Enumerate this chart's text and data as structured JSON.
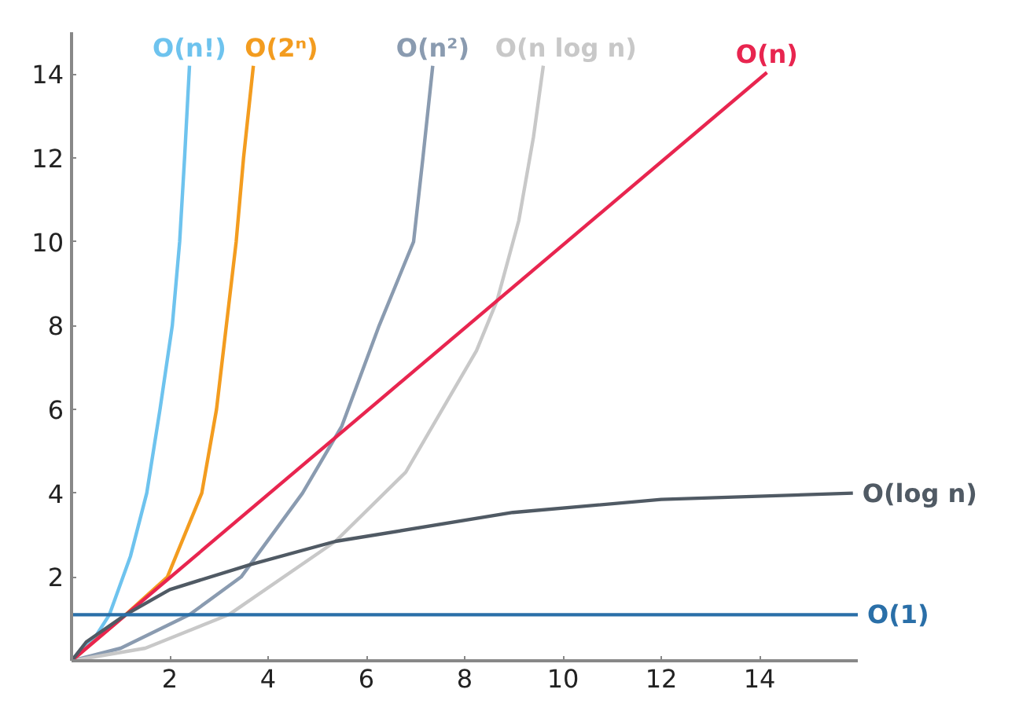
{
  "chart_data": {
    "type": "line",
    "xlim": [
      0,
      16
    ],
    "ylim": [
      0,
      15
    ],
    "xticks": [
      2,
      4,
      6,
      8,
      10,
      12,
      14
    ],
    "yticks": [
      2,
      4,
      6,
      8,
      10,
      12,
      14
    ],
    "grid": false,
    "legend": false,
    "marker": "none",
    "line_style": "solid",
    "series": [
      {
        "name": "O(n!)",
        "color": "#6ec3ee",
        "x": [
          0,
          0.5,
          0.77,
          1.2,
          1.53,
          1.8,
          2.05,
          2.2,
          2.3,
          2.4
        ],
        "values": [
          0,
          0.6,
          1.1,
          2.5,
          4,
          6,
          8,
          10,
          12,
          14.2
        ]
      },
      {
        "name": "O(2ⁿ)",
        "color": "#f39c1f",
        "x": [
          0,
          0.5,
          1.1,
          1.95,
          2.65,
          2.95,
          3.15,
          3.35,
          3.5,
          3.7
        ],
        "values": [
          0,
          0.5,
          1.1,
          2,
          4,
          6,
          8,
          10,
          12,
          14.2
        ]
      },
      {
        "name": "O(n²)",
        "color": "#8a9bb0",
        "x": [
          0,
          1,
          2.4,
          3.45,
          4.7,
          5.5,
          6.26,
          6.96,
          7.15,
          7.35
        ],
        "values": [
          0,
          0.3,
          1.1,
          2,
          4,
          5.6,
          8,
          10,
          12,
          14.2
        ]
      },
      {
        "name": "O(n log n)",
        "color": "#c8c8c8",
        "x": [
          0,
          1.5,
          3.2,
          5.37,
          6.8,
          8.24,
          8.66,
          9.1,
          9.4,
          9.6
        ],
        "values": [
          0,
          0.3,
          1.1,
          2.85,
          4.5,
          7.4,
          8.6,
          10.5,
          12.5,
          14.2
        ]
      },
      {
        "name": "O(n)",
        "color": "#e8254f",
        "x": [
          0,
          14.15
        ],
        "values": [
          0,
          14.04
        ]
      },
      {
        "name": "O(log n)",
        "color": "#505a64",
        "x": [
          0,
          0.3,
          1.1,
          2,
          3.65,
          5.37,
          8.98,
          12,
          15.9
        ],
        "values": [
          0,
          0.45,
          1.1,
          1.7,
          2.3,
          2.85,
          3.54,
          3.85,
          4.0
        ]
      },
      {
        "name": "O(1)",
        "color": "#2a6fa8",
        "x": [
          0,
          16
        ],
        "values": [
          1.1,
          1.1
        ]
      }
    ]
  }
}
